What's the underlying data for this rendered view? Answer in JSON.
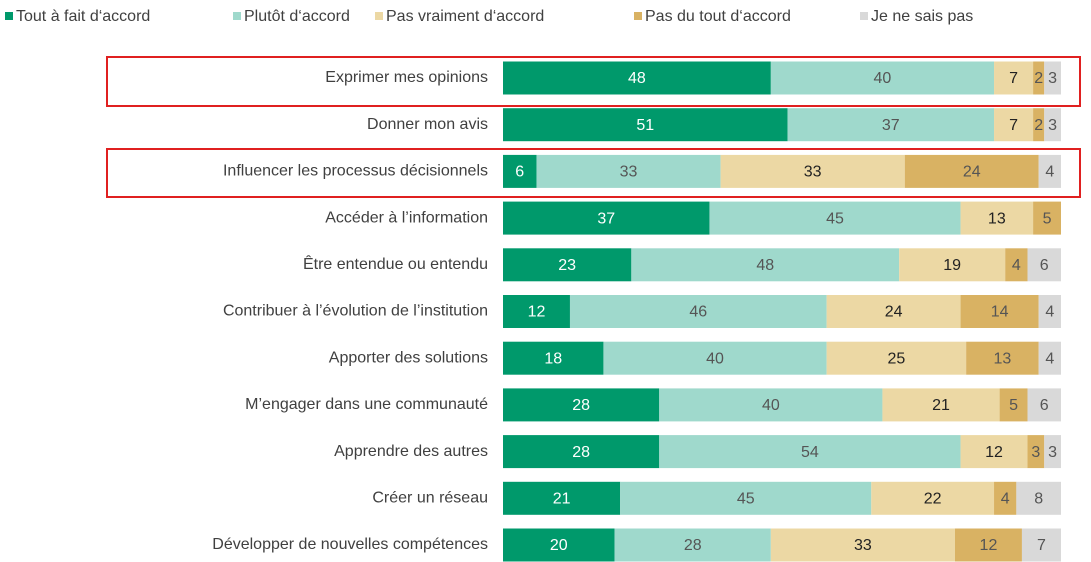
{
  "chart_data": {
    "type": "stacked-bar-horizontal",
    "categories": [
      "Exprimer mes opinions",
      "Donner mon avis",
      "Influencer les processus décisionnels",
      "Accéder à l’information",
      "Être entendue ou entendu",
      "Contribuer à l’évolution  de l’institution",
      "Apporter des solutions",
      "M’engager dans une communauté",
      "Apprendre des autres",
      "Créer un réseau",
      "Développer de nouvelles compétences"
    ],
    "series": [
      {
        "name": "Tout à fait d‘accord",
        "color": "#00996b",
        "values": [
          48,
          51,
          6,
          37,
          23,
          12,
          18,
          28,
          28,
          21,
          20
        ]
      },
      {
        "name": "Plutôt d‘accord",
        "color": "#9fd9cc",
        "values": [
          40,
          37,
          33,
          45,
          48,
          46,
          40,
          40,
          54,
          45,
          28
        ]
      },
      {
        "name": "Pas vraiment  d‘accord",
        "color": "#ecd8a4",
        "values": [
          7,
          7,
          33,
          13,
          19,
          24,
          25,
          21,
          12,
          22,
          33
        ]
      },
      {
        "name": "Pas du tout d‘accord",
        "color": "#d9b263",
        "values": [
          2,
          2,
          24,
          5,
          4,
          14,
          13,
          5,
          3,
          4,
          12
        ]
      },
      {
        "name": "Je ne sais pas",
        "color": "#d9d9d9",
        "values": [
          3,
          3,
          4,
          null,
          6,
          4,
          4,
          6,
          3,
          8,
          7
        ]
      }
    ],
    "xlim": [
      0,
      100
    ],
    "legend": "top"
  }
}
